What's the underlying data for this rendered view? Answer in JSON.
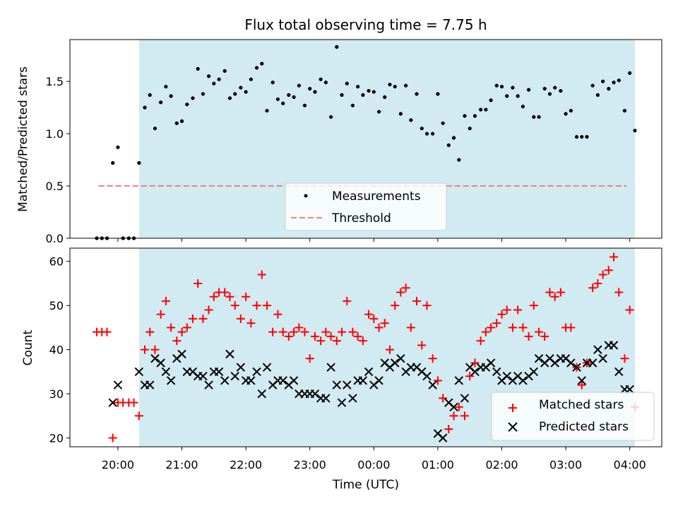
{
  "figure": {
    "title": "Flux total observing time = 7.75 h"
  },
  "colors": {
    "span": "#add8e6",
    "threshold": "#f08080",
    "matched": "#ff0000",
    "predicted": "#000000",
    "measurement": "#000000"
  },
  "chart_data": [
    {
      "type": "scatter",
      "title": "Flux total observing time = 7.75 h",
      "xlabel": "",
      "ylabel": "Matched/Predicted stars",
      "ylim": [
        0,
        1.9
      ],
      "yticks": [
        "0.0",
        "0.5",
        "1.0",
        "1.5"
      ],
      "legend": {
        "position": "lower center",
        "entries": [
          "Measurements",
          "Threshold"
        ]
      },
      "threshold": {
        "name": "Threshold",
        "value": 0.5,
        "x_start": -0.3,
        "x_end": 7.95
      },
      "shaded_span": {
        "x_start": 0.33,
        "x_end": 8.08
      },
      "series": [
        {
          "name": "Measurements",
          "x": [
            -0.33,
            -0.25,
            -0.17,
            -0.08,
            0.0,
            0.08,
            0.17,
            0.25,
            0.33,
            0.42,
            0.5,
            0.58,
            0.67,
            0.75,
            0.83,
            0.92,
            1.0,
            1.08,
            1.17,
            1.25,
            1.33,
            1.42,
            1.5,
            1.58,
            1.67,
            1.75,
            1.83,
            1.92,
            2.0,
            2.08,
            2.17,
            2.25,
            2.33,
            2.42,
            2.5,
            2.58,
            2.67,
            2.75,
            2.83,
            2.92,
            3.0,
            3.08,
            3.17,
            3.25,
            3.33,
            3.42,
            3.5,
            3.58,
            3.67,
            3.75,
            3.83,
            3.92,
            4.0,
            4.08,
            4.17,
            4.25,
            4.33,
            4.42,
            4.5,
            4.58,
            4.67,
            4.75,
            4.83,
            4.92,
            5.0,
            5.08,
            5.17,
            5.25,
            5.33,
            5.42,
            5.5,
            5.58,
            5.67,
            5.75,
            5.83,
            5.92,
            6.0,
            6.08,
            6.17,
            6.25,
            6.33,
            6.42,
            6.5,
            6.58,
            6.67,
            6.75,
            6.83,
            6.92,
            7.0,
            7.08,
            7.17,
            7.25,
            7.33,
            7.42,
            7.5,
            7.58,
            7.67,
            7.75,
            7.83,
            7.92,
            8.0,
            8.08
          ],
          "y": [
            0,
            0,
            0,
            0.72,
            0.87,
            0,
            0,
            0,
            0.72,
            1.25,
            1.37,
            1.05,
            1.3,
            1.45,
            1.36,
            1.1,
            1.12,
            1.28,
            1.34,
            1.62,
            1.38,
            1.55,
            1.48,
            1.52,
            1.6,
            1.34,
            1.38,
            1.44,
            1.4,
            1.52,
            1.63,
            1.67,
            1.22,
            1.49,
            1.33,
            1.29,
            1.37,
            1.35,
            1.46,
            1.27,
            1.43,
            1.4,
            1.52,
            1.49,
            1.16,
            1.83,
            1.37,
            1.48,
            1.27,
            1.45,
            1.37,
            1.41,
            1.4,
            1.21,
            1.35,
            1.47,
            1.45,
            1.19,
            1.46,
            1.13,
            1.38,
            1.05,
            1.0,
            1.0,
            1.38,
            1.1,
            0.89,
            0.96,
            0.75,
            1.17,
            1.05,
            1.17,
            1.23,
            1.23,
            1.32,
            1.46,
            1.45,
            1.36,
            1.44,
            1.36,
            1.26,
            1.42,
            1.16,
            1.16,
            1.43,
            1.38,
            1.44,
            1.41,
            1.19,
            1.22,
            0.97,
            0.97,
            0.97,
            1.46,
            1.37,
            1.5,
            1.43,
            1.49,
            1.51,
            1.22,
            1.58,
            1.03
          ]
        }
      ]
    },
    {
      "type": "scatter",
      "title": "",
      "xlabel": "Time (UTC)",
      "ylabel": "Count",
      "ylim": [
        18,
        63
      ],
      "yticks": [
        "20",
        "30",
        "40",
        "50",
        "60"
      ],
      "xlim": [
        -0.75,
        8.5
      ],
      "xticks": [
        "20:00",
        "21:00",
        "22:00",
        "23:00",
        "00:00",
        "01:00",
        "02:00",
        "03:00",
        "04:00"
      ],
      "legend": {
        "position": "lower right",
        "entries": [
          "Matched stars",
          "Predicted stars"
        ]
      },
      "shaded_span": {
        "x_start": 0.33,
        "x_end": 8.08
      },
      "series": [
        {
          "name": "Matched stars",
          "marker": "+",
          "x": [
            -0.33,
            -0.25,
            -0.17,
            -0.08,
            0.0,
            0.08,
            0.17,
            0.25,
            0.33,
            0.42,
            0.5,
            0.58,
            0.67,
            0.75,
            0.83,
            0.92,
            1.0,
            1.08,
            1.17,
            1.25,
            1.33,
            1.42,
            1.5,
            1.58,
            1.67,
            1.75,
            1.83,
            1.92,
            2.0,
            2.08,
            2.17,
            2.25,
            2.33,
            2.42,
            2.5,
            2.58,
            2.67,
            2.75,
            2.83,
            2.92,
            3.0,
            3.08,
            3.17,
            3.25,
            3.33,
            3.42,
            3.5,
            3.58,
            3.67,
            3.75,
            3.83,
            3.92,
            4.0,
            4.08,
            4.17,
            4.25,
            4.33,
            4.42,
            4.5,
            4.58,
            4.67,
            4.75,
            4.83,
            4.92,
            5.0,
            5.08,
            5.17,
            5.25,
            5.33,
            5.42,
            5.5,
            5.58,
            5.67,
            5.75,
            5.83,
            5.92,
            6.0,
            6.08,
            6.17,
            6.25,
            6.33,
            6.42,
            6.5,
            6.58,
            6.67,
            6.75,
            6.83,
            6.92,
            7.0,
            7.08,
            7.17,
            7.25,
            7.33,
            7.42,
            7.5,
            7.58,
            7.67,
            7.75,
            7.83,
            7.92,
            8.0,
            8.08
          ],
          "y": [
            44,
            44,
            44,
            20,
            28,
            28,
            28,
            28,
            25,
            40,
            44,
            40,
            48,
            51,
            45,
            42,
            44,
            45,
            47,
            55,
            47,
            49,
            52,
            53,
            53,
            52,
            50,
            47,
            52,
            46,
            50,
            57,
            50,
            44,
            48,
            44,
            43,
            44,
            45,
            44,
            38,
            43,
            42,
            44,
            43,
            42,
            44,
            51,
            44,
            43,
            42,
            48,
            47,
            45,
            46,
            40,
            50,
            53,
            54,
            45,
            51,
            41,
            50,
            38,
            33,
            29,
            22,
            25,
            27,
            25,
            34,
            37,
            42,
            44,
            45,
            46,
            48,
            49,
            45,
            49,
            45,
            43,
            50,
            44,
            43,
            53,
            52,
            53,
            45,
            45,
            36,
            32,
            37,
            54,
            55,
            57,
            58,
            61,
            53,
            38,
            49,
            27
          ]
        },
        {
          "name": "Predicted stars",
          "marker": "x",
          "x": [
            -0.08,
            0.0,
            0.33,
            0.42,
            0.5,
            0.58,
            0.67,
            0.75,
            0.83,
            0.92,
            1.0,
            1.08,
            1.17,
            1.25,
            1.33,
            1.42,
            1.5,
            1.58,
            1.67,
            1.75,
            1.83,
            1.92,
            2.0,
            2.08,
            2.17,
            2.25,
            2.33,
            2.42,
            2.5,
            2.58,
            2.67,
            2.75,
            2.83,
            2.92,
            3.0,
            3.08,
            3.17,
            3.25,
            3.33,
            3.42,
            3.5,
            3.58,
            3.67,
            3.75,
            3.83,
            3.92,
            4.0,
            4.08,
            4.17,
            4.25,
            4.33,
            4.42,
            4.5,
            4.58,
            4.67,
            4.75,
            4.83,
            4.92,
            5.0,
            5.08,
            5.17,
            5.25,
            5.33,
            5.42,
            5.5,
            5.58,
            5.67,
            5.75,
            5.83,
            5.92,
            6.0,
            6.08,
            6.17,
            6.25,
            6.33,
            6.42,
            6.5,
            6.58,
            6.67,
            6.75,
            6.83,
            6.92,
            7.0,
            7.08,
            7.17,
            7.25,
            7.33,
            7.42,
            7.5,
            7.58,
            7.67,
            7.75,
            7.83,
            7.92,
            8.0
          ],
          "y": [
            28,
            32,
            35,
            32,
            32,
            38,
            37,
            35,
            33,
            38,
            39,
            35,
            35,
            34,
            34,
            32,
            35,
            35,
            33,
            39,
            34,
            36,
            33,
            33,
            35,
            30,
            36,
            32,
            33,
            33,
            32,
            33,
            30,
            30,
            30,
            30,
            29,
            29,
            36,
            32,
            28,
            32,
            29,
            33,
            33,
            35,
            32,
            33,
            37,
            36,
            37,
            38,
            35,
            36,
            36,
            35,
            34,
            32,
            21,
            20,
            28,
            27,
            33,
            29,
            36,
            35,
            36,
            36,
            37,
            35,
            33,
            34,
            33,
            34,
            33,
            34,
            35,
            38,
            37,
            38,
            37,
            38,
            38,
            37,
            36,
            33,
            37,
            37,
            40,
            38,
            41,
            41,
            35,
            31,
            31
          ]
        }
      ]
    }
  ]
}
